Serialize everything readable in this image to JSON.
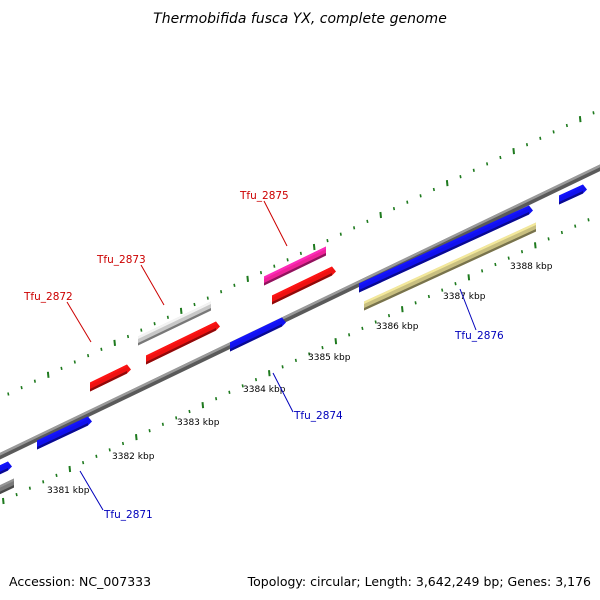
{
  "title": "Thermobifida fusca YX, complete genome",
  "footer": {
    "accession": "Accession: NC_007333",
    "summary": "Topology: circular; Length: 3,642,249 bp; Genes: 3,176"
  },
  "colors": {
    "forward_label": "#cc0000",
    "reverse_label": "#0000bb",
    "backbone": "#888888",
    "tick": "#1e7a1e"
  },
  "ruler_labels": [
    "3381 kbp",
    "3382 kbp",
    "3383 kbp",
    "3384 kbp",
    "3385 kbp",
    "3386 kbp",
    "3387 kbp",
    "3388 kbp"
  ],
  "gene_labels": [
    {
      "text": "Tfu_2871",
      "strand": "reverse"
    },
    {
      "text": "Tfu_2872",
      "strand": "forward"
    },
    {
      "text": "Tfu_2873",
      "strand": "forward"
    },
    {
      "text": "Tfu_2874",
      "strand": "reverse"
    },
    {
      "text": "Tfu_2875",
      "strand": "forward"
    },
    {
      "text": "Tfu_2876",
      "strand": "reverse"
    }
  ],
  "feature_colors": {
    "red": "#ee1111",
    "blue": "#1111ee",
    "gray": "#c8c8c8",
    "darkgray": "#7a7a7a",
    "pink": "#ee2299",
    "olive": "#c8bf80"
  }
}
